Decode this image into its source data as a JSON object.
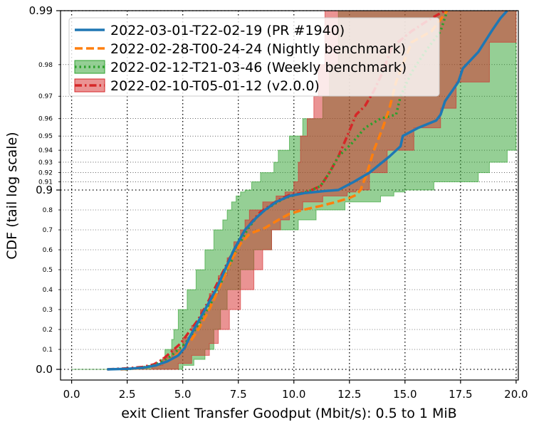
{
  "chart_data": {
    "type": "line",
    "xlabel": "exit Client Transfer Goodput (Mbit/s): 0.5 to 1 MiB",
    "ylabel": "CDF (tail log scale)",
    "xlim": [
      -0.5,
      20.1
    ],
    "x_ticks": [
      "0.0",
      "2.5",
      "5.0",
      "7.5",
      "10.0",
      "12.5",
      "15.0",
      "17.5",
      "20.0"
    ],
    "x_tick_values": [
      0,
      2.5,
      5,
      7.5,
      10,
      12.5,
      15,
      17.5,
      20
    ],
    "y_scale": "linear below 0.9, log tail (-log10(1-p)) above 0.9",
    "y_major_ticks": [
      {
        "value": 0.0,
        "label": "0.0"
      },
      {
        "value": 0.9,
        "label": "0.9"
      },
      {
        "value": 0.99,
        "label": "0.99"
      }
    ],
    "y_minor_ticks": [
      {
        "value": 0.1,
        "label": "0.1"
      },
      {
        "value": 0.2,
        "label": "0.2"
      },
      {
        "value": 0.3,
        "label": "0.3"
      },
      {
        "value": 0.4,
        "label": "0.4"
      },
      {
        "value": 0.5,
        "label": "0.5"
      },
      {
        "value": 0.6,
        "label": "0.6"
      },
      {
        "value": 0.7,
        "label": "0.7"
      },
      {
        "value": 0.8,
        "label": "0.8"
      },
      {
        "value": 0.91,
        "label": "0.91"
      },
      {
        "value": 0.92,
        "label": "0.92"
      },
      {
        "value": 0.93,
        "label": "0.93"
      },
      {
        "value": 0.94,
        "label": "0.94"
      },
      {
        "value": 0.95,
        "label": "0.95"
      },
      {
        "value": 0.96,
        "label": "0.96"
      },
      {
        "value": 0.97,
        "label": "0.97"
      },
      {
        "value": 0.98,
        "label": "0.98"
      }
    ],
    "grid": "dotted",
    "legend_position": "upper-left",
    "series": [
      {
        "name": "2022-03-01-T22-02-19 (PR #1940)",
        "color": "#1f77b4",
        "dash": "solid",
        "points": [
          [
            1.6,
            0.0
          ],
          [
            2.5,
            0.003
          ],
          [
            3.2,
            0.008
          ],
          [
            3.8,
            0.02
          ],
          [
            4.3,
            0.04
          ],
          [
            4.8,
            0.07
          ],
          [
            5.1,
            0.11
          ],
          [
            5.3,
            0.16
          ],
          [
            5.6,
            0.22
          ],
          [
            6.0,
            0.3
          ],
          [
            6.5,
            0.4
          ],
          [
            6.9,
            0.5
          ],
          [
            7.3,
            0.6
          ],
          [
            7.8,
            0.7
          ],
          [
            8.3,
            0.76
          ],
          [
            8.7,
            0.8
          ],
          [
            9.2,
            0.84
          ],
          [
            9.8,
            0.87
          ],
          [
            10.5,
            0.885
          ],
          [
            11.4,
            0.895
          ],
          [
            12.0,
            0.9
          ],
          [
            12.7,
            0.91
          ],
          [
            13.4,
            0.92
          ],
          [
            14.3,
            0.935
          ],
          [
            14.8,
            0.943
          ],
          [
            14.9,
            0.95
          ],
          [
            15.6,
            0.955
          ],
          [
            16.4,
            0.959
          ],
          [
            16.6,
            0.962
          ],
          [
            16.8,
            0.968
          ],
          [
            17.4,
            0.975
          ],
          [
            17.6,
            0.979
          ],
          [
            18.3,
            0.983
          ],
          [
            18.9,
            0.987
          ],
          [
            19.3,
            0.989
          ],
          [
            19.6,
            0.99
          ]
        ]
      },
      {
        "name": "2022-02-28-T00-24-24 (Nightly benchmark)",
        "color": "#ff7f0e",
        "dash": "dashed",
        "points": [
          [
            2.2,
            0.0
          ],
          [
            3.0,
            0.005
          ],
          [
            3.6,
            0.015
          ],
          [
            4.1,
            0.03
          ],
          [
            4.6,
            0.06
          ],
          [
            5.0,
            0.1
          ],
          [
            5.4,
            0.15
          ],
          [
            5.7,
            0.2
          ],
          [
            6.1,
            0.28
          ],
          [
            6.4,
            0.35
          ],
          [
            6.8,
            0.45
          ],
          [
            7.2,
            0.55
          ],
          [
            7.6,
            0.63
          ],
          [
            8.0,
            0.68
          ],
          [
            8.7,
            0.71
          ],
          [
            9.3,
            0.75
          ],
          [
            9.8,
            0.78
          ],
          [
            10.4,
            0.8
          ],
          [
            11.2,
            0.82
          ],
          [
            11.9,
            0.84
          ],
          [
            12.5,
            0.86
          ],
          [
            12.8,
            0.875
          ],
          [
            13.0,
            0.9
          ],
          [
            13.3,
            0.92
          ],
          [
            13.6,
            0.94
          ],
          [
            14.0,
            0.955
          ],
          [
            14.3,
            0.965
          ],
          [
            14.6,
            0.975
          ],
          [
            14.9,
            0.98
          ],
          [
            15.3,
            0.985
          ],
          [
            16.2,
            0.987
          ],
          [
            16.9,
            0.99
          ]
        ]
      },
      {
        "name": "2022-02-12-T21-03-46 (Weekly benchmark)",
        "color": "#2ca02c",
        "dash": "dotted",
        "points": [
          [
            2.4,
            0.0
          ],
          [
            3.1,
            0.008
          ],
          [
            3.7,
            0.02
          ],
          [
            4.2,
            0.045
          ],
          [
            4.6,
            0.08
          ],
          [
            5.1,
            0.13
          ],
          [
            5.5,
            0.19
          ],
          [
            5.9,
            0.26
          ],
          [
            6.3,
            0.34
          ],
          [
            6.7,
            0.43
          ],
          [
            7.1,
            0.52
          ],
          [
            7.5,
            0.62
          ],
          [
            7.9,
            0.7
          ],
          [
            8.3,
            0.76
          ],
          [
            8.7,
            0.8
          ],
          [
            9.2,
            0.835
          ],
          [
            9.6,
            0.86
          ],
          [
            10.2,
            0.88
          ],
          [
            10.7,
            0.895
          ],
          [
            11.2,
            0.905
          ],
          [
            11.6,
            0.92
          ],
          [
            12.0,
            0.935
          ],
          [
            12.6,
            0.945
          ],
          [
            13.2,
            0.955
          ],
          [
            13.9,
            0.96
          ],
          [
            14.6,
            0.962
          ],
          [
            14.8,
            0.97
          ],
          [
            15.3,
            0.978
          ],
          [
            15.9,
            0.983
          ],
          [
            16.6,
            0.987
          ],
          [
            16.9,
            0.99
          ]
        ]
      },
      {
        "name": "2022-02-10-T05-01-12 (v2.0.0)",
        "color": "#d62728",
        "dash": "dashdot",
        "points": [
          [
            1.6,
            0.0
          ],
          [
            2.5,
            0.005
          ],
          [
            3.2,
            0.012
          ],
          [
            3.7,
            0.025
          ],
          [
            4.1,
            0.05
          ],
          [
            4.5,
            0.09
          ],
          [
            4.9,
            0.13
          ],
          [
            5.3,
            0.19
          ],
          [
            5.7,
            0.25
          ],
          [
            6.1,
            0.33
          ],
          [
            6.5,
            0.42
          ],
          [
            6.9,
            0.51
          ],
          [
            7.3,
            0.6
          ],
          [
            7.7,
            0.68
          ],
          [
            8.1,
            0.74
          ],
          [
            8.5,
            0.79
          ],
          [
            8.9,
            0.82
          ],
          [
            9.3,
            0.85
          ],
          [
            9.8,
            0.875
          ],
          [
            10.6,
            0.89
          ],
          [
            11.2,
            0.905
          ],
          [
            11.6,
            0.92
          ],
          [
            12.0,
            0.935
          ],
          [
            12.4,
            0.95
          ],
          [
            12.8,
            0.962
          ],
          [
            13.2,
            0.966
          ],
          [
            13.6,
            0.972
          ],
          [
            14.0,
            0.978
          ],
          [
            14.4,
            0.984
          ],
          [
            15.3,
            0.987
          ],
          [
            16.2,
            0.989
          ],
          [
            16.8,
            0.99
          ]
        ]
      }
    ],
    "bands": [
      {
        "series": "2022-02-12-T21-03-46 (Weekly benchmark)",
        "color": "#2ca02c",
        "opacity": 0.5,
        "lower": [
          [
            0.0,
            0.0
          ],
          [
            2.2,
            0.005
          ],
          [
            3.5,
            0.02
          ],
          [
            4.0,
            0.05
          ],
          [
            4.2,
            0.1
          ],
          [
            4.5,
            0.15
          ],
          [
            4.6,
            0.2
          ],
          [
            4.8,
            0.3
          ],
          [
            5.2,
            0.4
          ],
          [
            5.6,
            0.5
          ],
          [
            6.0,
            0.6
          ],
          [
            6.4,
            0.7
          ],
          [
            6.8,
            0.75
          ],
          [
            7.0,
            0.8
          ],
          [
            7.2,
            0.84
          ],
          [
            7.4,
            0.87
          ],
          [
            7.6,
            0.89
          ],
          [
            7.8,
            0.9
          ],
          [
            8.1,
            0.91
          ],
          [
            8.5,
            0.92
          ],
          [
            9.1,
            0.93
          ],
          [
            9.3,
            0.94
          ],
          [
            9.8,
            0.95
          ],
          [
            10.4,
            0.96
          ],
          [
            11.3,
            0.97
          ],
          [
            11.6,
            0.98
          ],
          [
            12.0,
            0.99
          ]
        ],
        "upper": [
          [
            4.5,
            0.0
          ],
          [
            5.0,
            0.02
          ],
          [
            5.5,
            0.05
          ],
          [
            6.0,
            0.1
          ],
          [
            6.4,
            0.2
          ],
          [
            6.7,
            0.3
          ],
          [
            7.0,
            0.4
          ],
          [
            7.6,
            0.5
          ],
          [
            8.2,
            0.6
          ],
          [
            9.0,
            0.7
          ],
          [
            10.2,
            0.75
          ],
          [
            11.0,
            0.8
          ],
          [
            12.3,
            0.84
          ],
          [
            13.9,
            0.87
          ],
          [
            14.5,
            0.89
          ],
          [
            15.0,
            0.9
          ],
          [
            16.3,
            0.91
          ],
          [
            18.3,
            0.92
          ],
          [
            18.8,
            0.93
          ],
          [
            19.6,
            0.94
          ],
          [
            20.0,
            0.95
          ],
          [
            20.0,
            0.99
          ]
        ]
      },
      {
        "series": "2022-02-10-T05-01-12 (v2.0.0)",
        "color": "#d62728",
        "opacity": 0.5,
        "lower": [
          [
            2.3,
            0.0
          ],
          [
            3.6,
            0.02
          ],
          [
            4.1,
            0.06
          ],
          [
            4.5,
            0.1
          ],
          [
            5.0,
            0.16
          ],
          [
            5.4,
            0.22
          ],
          [
            5.8,
            0.3
          ],
          [
            6.2,
            0.38
          ],
          [
            6.6,
            0.47
          ],
          [
            7.0,
            0.56
          ],
          [
            7.3,
            0.64
          ],
          [
            7.6,
            0.7
          ],
          [
            7.8,
            0.75
          ],
          [
            8.0,
            0.8
          ],
          [
            8.6,
            0.84
          ],
          [
            9.2,
            0.87
          ],
          [
            9.6,
            0.89
          ],
          [
            10.0,
            0.91
          ],
          [
            10.2,
            0.93
          ],
          [
            10.3,
            0.95
          ],
          [
            10.6,
            0.96
          ],
          [
            10.9,
            0.97
          ],
          [
            11.1,
            0.98
          ],
          [
            11.4,
            0.99
          ]
        ],
        "upper": [
          [
            3.9,
            0.0
          ],
          [
            4.8,
            0.03
          ],
          [
            5.4,
            0.07
          ],
          [
            6.2,
            0.13
          ],
          [
            6.6,
            0.2
          ],
          [
            7.1,
            0.3
          ],
          [
            7.6,
            0.4
          ],
          [
            8.2,
            0.5
          ],
          [
            8.6,
            0.6
          ],
          [
            9.0,
            0.7
          ],
          [
            9.4,
            0.75
          ],
          [
            9.8,
            0.8
          ],
          [
            10.4,
            0.84
          ],
          [
            11.3,
            0.87
          ],
          [
            12.4,
            0.89
          ],
          [
            12.8,
            0.9
          ],
          [
            13.4,
            0.92
          ],
          [
            14.2,
            0.94
          ],
          [
            15.4,
            0.955
          ],
          [
            16.6,
            0.965
          ],
          [
            17.3,
            0.975
          ],
          [
            18.8,
            0.985
          ],
          [
            20.0,
            0.99
          ]
        ]
      }
    ]
  }
}
